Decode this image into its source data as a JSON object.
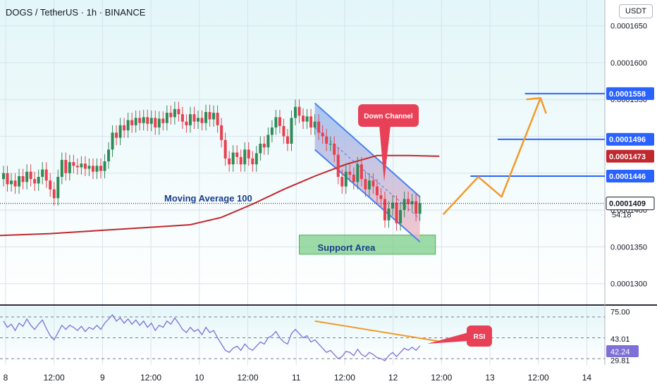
{
  "header": {
    "symbol_title": "DOGS / TetherUS · 1h · BINANCE",
    "currency_badge": "USDT"
  },
  "colors": {
    "bg_top": "#e3f6f9",
    "bg_bottom": "#ffffff",
    "bull": "#2e8b57",
    "bear": "#e8404f",
    "ma": "#c0282e",
    "channel_line": "#4a7ff0",
    "channel_fill_top": "#8fb6f0",
    "channel_fill_bottom": "#f3b8c0",
    "support_fill": "#7ccf8a",
    "projection": "#f39a2a",
    "level_line": "#2962ff",
    "rsi_line": "#7e70d6",
    "rsi_label_bg": "#e84057"
  },
  "chart_data": [
    {
      "type": "candlestick",
      "title": "DOGS / TetherUS · 1h · BINANCE",
      "y_axis_label": "USDT",
      "x_ticks": [
        "8",
        "12:00",
        "9",
        "12:00",
        "10",
        "12:00",
        "11",
        "12:00",
        "12",
        "12:00",
        "13",
        "12:00",
        "14"
      ],
      "y_ticks": [
        "0.0001650",
        "0.0001600",
        "0.0001550",
        "0.0001500",
        "0.0001450",
        "0.0001400",
        "0.0001350",
        "0.0001300"
      ],
      "ylim": [
        0.0001272,
        0.0001685
      ],
      "price_tags": [
        {
          "label": "0.0001558",
          "value": 0.0001558,
          "kind": "level"
        },
        {
          "label": "0.0001496",
          "value": 0.0001496,
          "kind": "level"
        },
        {
          "label": "0.0001473",
          "value": 0.0001473,
          "kind": "ma"
        },
        {
          "label": "0.0001446",
          "value": 0.0001446,
          "kind": "level"
        },
        {
          "label": "0.0001409",
          "value": 0.0001409,
          "kind": "last"
        }
      ],
      "countdown": "54:18",
      "candles_close": [
        0.000145,
        0.0001435,
        0.000144,
        0.0001432,
        0.0001446,
        0.0001438,
        0.0001452,
        0.0001442,
        0.0001436,
        0.0001445,
        0.0001455,
        0.000144,
        0.0001428,
        0.0001416,
        0.0001445,
        0.0001468,
        0.000145,
        0.0001465,
        0.000146,
        0.0001458,
        0.0001463,
        0.0001456,
        0.000146,
        0.0001452,
        0.000146,
        0.0001453,
        0.0001466,
        0.0001482,
        0.0001505,
        0.0001498,
        0.0001515,
        0.0001508,
        0.0001522,
        0.0001515,
        0.0001525,
        0.0001518,
        0.0001526,
        0.0001517,
        0.0001525,
        0.0001512,
        0.0001524,
        0.0001518,
        0.0001532,
        0.0001526,
        0.0001537,
        0.000153,
        0.000152,
        0.0001515,
        0.000153,
        0.000152,
        0.0001525,
        0.0001518,
        0.0001533,
        0.0001523,
        0.0001532,
        0.0001515,
        0.0001495,
        0.000147,
        0.0001462,
        0.0001478,
        0.0001472,
        0.0001462,
        0.0001482,
        0.000147,
        0.0001462,
        0.0001477,
        0.000149,
        0.0001485,
        0.0001502,
        0.0001512,
        0.0001526,
        0.0001514,
        0.00015,
        0.000149,
        0.0001525,
        0.000154,
        0.0001528,
        0.000152,
        0.0001527,
        0.0001512,
        0.000152,
        0.0001505,
        0.00015,
        0.000149,
        0.000149,
        0.0001475,
        0.0001445,
        0.0001432,
        0.0001452,
        0.0001448,
        0.0001438,
        0.0001462,
        0.0001442,
        0.0001428,
        0.000144,
        0.0001432,
        0.000142,
        0.0001415,
        0.0001386,
        0.0001402,
        0.000141,
        0.0001382,
        0.00014,
        0.0001415,
        0.0001408,
        0.0001412,
        0.0001395,
        0.0001409
      ],
      "candles_open_first": 0.0001442,
      "moving_average": {
        "label": "Moving Average 100",
        "period": 100,
        "points": [
          [
            -3,
            0.0001365
          ],
          [
            12,
            0.0001368
          ],
          [
            24,
            0.0001372
          ],
          [
            36,
            0.0001376
          ],
          [
            48,
            0.000138
          ],
          [
            56,
            0.000139
          ],
          [
            64,
            0.0001408
          ],
          [
            72,
            0.0001428
          ],
          [
            80,
            0.0001446
          ],
          [
            88,
            0.0001462
          ],
          [
            96,
            0.0001474
          ],
          [
            104,
            0.0001474
          ],
          [
            112,
            0.0001473
          ]
        ]
      },
      "down_channel": {
        "label": "Down Channel",
        "upper": [
          [
            80,
            0.0001545
          ],
          [
            107,
            0.0001418
          ]
        ],
        "lower": [
          [
            80,
            0.0001482
          ],
          [
            107,
            0.0001357
          ]
        ],
        "mid": [
          [
            80,
            0.0001512
          ],
          [
            107,
            0.0001388
          ]
        ]
      },
      "support_area": {
        "label": "Support Area",
        "from": 76,
        "to": 111,
        "y_top": 0.0001366,
        "y_bottom": 0.000134
      },
      "projection_path": [
        [
          113,
          0.0001394
        ],
        [
          122,
          0.0001445
        ],
        [
          128,
          0.0001418
        ],
        [
          138,
          0.0001552
        ]
      ],
      "horizontal_levels": [
        {
          "value": 0.0001558,
          "from": 134,
          "to": 160
        },
        {
          "value": 0.0001496,
          "from": 127,
          "to": 160
        },
        {
          "value": 0.0001446,
          "from": 120,
          "to": 160
        }
      ]
    },
    {
      "type": "line",
      "title": "RSI",
      "y_ticks": [
        "75.00",
        "43.01",
        "42.24",
        "29.81"
      ],
      "ylim": [
        24,
        80
      ],
      "bands": [
        70,
        50,
        30
      ],
      "series": [
        {
          "name": "RSI",
          "values": [
            66,
            60,
            63,
            57,
            64,
            61,
            68,
            62,
            58,
            63,
            67,
            59,
            52,
            48,
            55,
            62,
            58,
            62,
            60,
            57,
            61,
            56,
            60,
            58,
            62,
            58,
            64,
            68,
            72,
            66,
            69,
            64,
            68,
            63,
            67,
            62,
            66,
            60,
            64,
            57,
            62,
            60,
            66,
            63,
            69,
            64,
            58,
            55,
            60,
            56,
            58,
            53,
            60,
            55,
            57,
            50,
            44,
            38,
            36,
            40,
            42,
            38,
            44,
            40,
            38,
            42,
            46,
            44,
            50,
            52,
            56,
            50,
            46,
            44,
            54,
            58,
            54,
            50,
            52,
            46,
            48,
            44,
            40,
            36,
            38,
            34,
            30,
            32,
            37,
            36,
            33,
            39,
            34,
            32,
            36,
            34,
            31,
            30,
            28,
            33,
            36,
            32,
            36,
            40,
            38,
            41,
            38,
            42.24
          ]
        }
      ],
      "trendline": [
        [
          80,
          66
        ],
        [
          113,
          46
        ]
      ],
      "callout": "RSI"
    }
  ]
}
